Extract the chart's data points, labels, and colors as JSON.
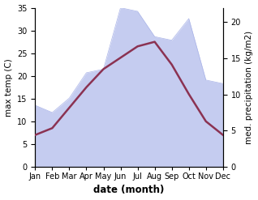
{
  "months": [
    "Jan",
    "Feb",
    "Mar",
    "Apr",
    "May",
    "Jun",
    "Jul",
    "Aug",
    "Sep",
    "Oct",
    "Nov",
    "Dec"
  ],
  "temp": [
    7.0,
    8.5,
    13.0,
    17.5,
    21.5,
    24.0,
    26.5,
    27.5,
    22.5,
    16.0,
    10.0,
    7.0
  ],
  "precip": [
    8.5,
    7.5,
    9.5,
    13.0,
    13.5,
    22.0,
    21.5,
    18.0,
    17.5,
    20.5,
    12.0,
    11.5
  ],
  "temp_color": "#8B3252",
  "precip_fill_color": "#c5ccf0",
  "precip_edge_color": "#aab4e8",
  "left_ylabel": "max temp (C)",
  "right_ylabel": "med. precipitation (kg/m2)",
  "xlabel": "date (month)",
  "ylim_left": [
    0,
    35
  ],
  "ylim_right": [
    0,
    22
  ],
  "yticks_left": [
    0,
    5,
    10,
    15,
    20,
    25,
    30,
    35
  ],
  "yticks_right": [
    0,
    5,
    10,
    15,
    20
  ],
  "bg_color": "#ffffff",
  "label_fontsize": 7.5,
  "tick_fontsize": 7.0,
  "xlabel_fontsize": 8.5,
  "linewidth": 1.8
}
